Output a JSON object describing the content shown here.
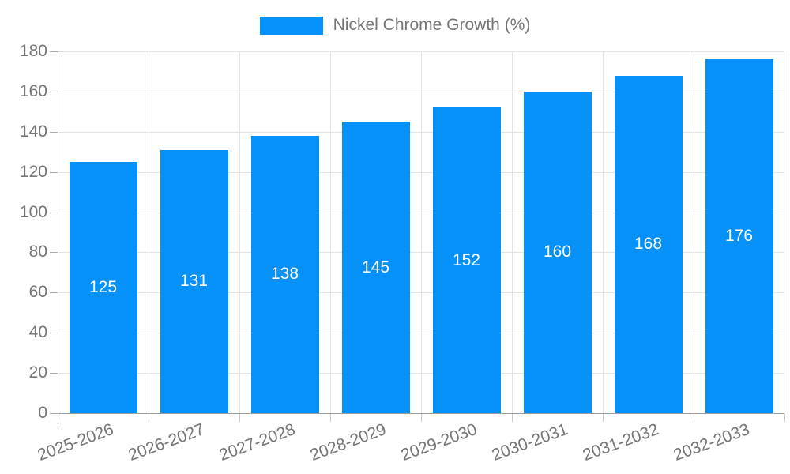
{
  "legend": {
    "label": "Nickel Chrome Growth (%)"
  },
  "chart_data": {
    "type": "bar",
    "title": "",
    "xlabel": "",
    "ylabel": "",
    "series_name": "Nickel Chrome Growth (%)",
    "categories": [
      "2025-2026",
      "2026-2027",
      "2027-2028",
      "2028-2029",
      "2029-2030",
      "2030-2031",
      "2031-2032",
      "2032-2033"
    ],
    "values": [
      125,
      131,
      138,
      145,
      152,
      160,
      168,
      176
    ],
    "value_labels_shown": true,
    "ylim": [
      0,
      180
    ],
    "ytick_step": 20,
    "ytick_labels": [
      "0",
      "20",
      "40",
      "60",
      "80",
      "100",
      "120",
      "140",
      "160",
      "180"
    ],
    "grid": true,
    "legend_position": "top-center",
    "x_label_rotation_deg": -20,
    "colors": {
      "bar": "#0691f8",
      "bar_value_text": "#ffffff",
      "axis_text": "#757575",
      "gridline": "#e3e3e3",
      "axis_line": "#9e9e9e",
      "tick": "#ababab"
    }
  }
}
